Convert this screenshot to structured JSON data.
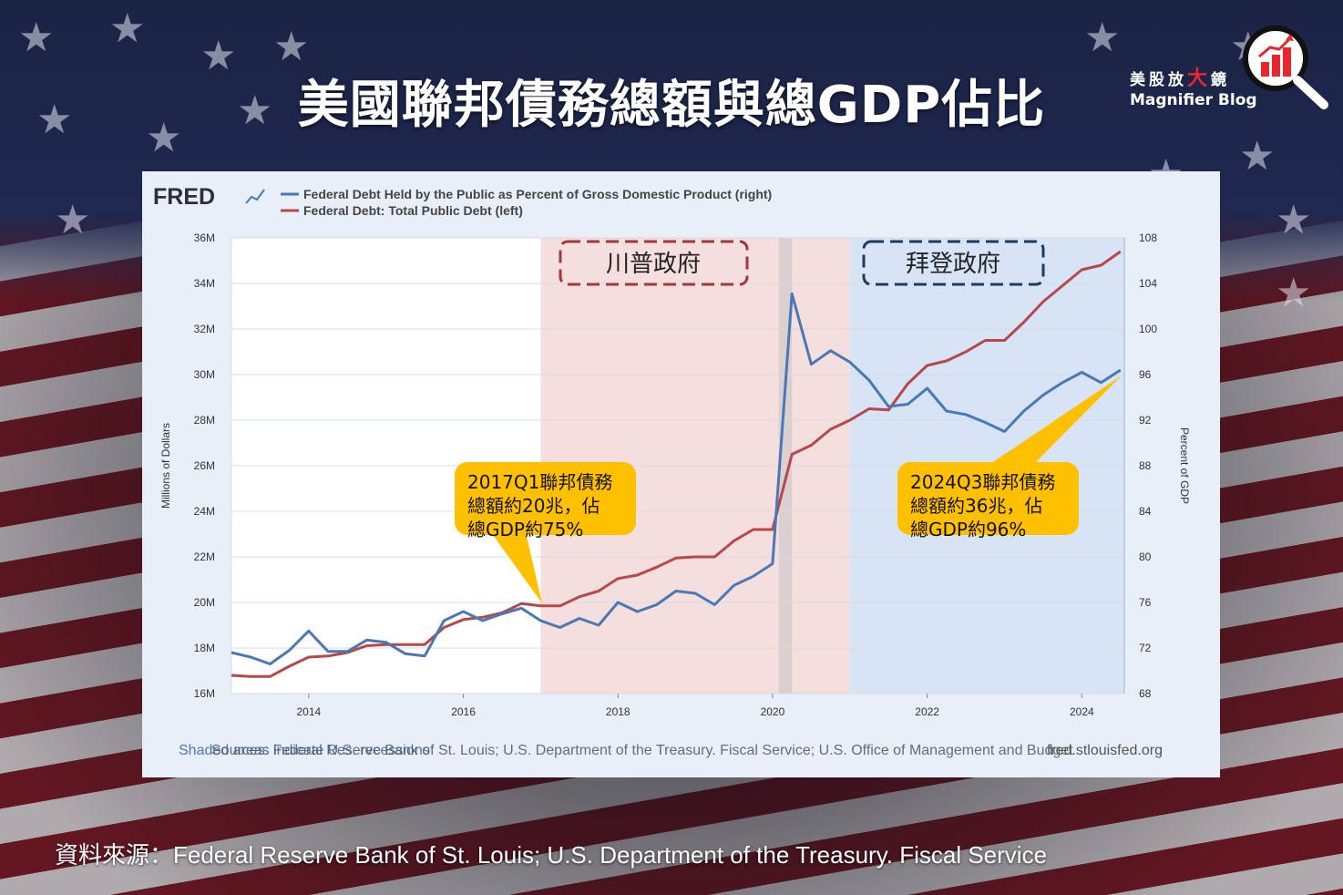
{
  "title": "美國聯邦債務總額與總GDP佔比",
  "logo": {
    "cn_left": "美股放",
    "cn_big": "大",
    "cn_right": "鏡",
    "en": "Magnifier Blog"
  },
  "source_line": "資料來源：Federal Reserve Bank of St. Louis; U.S. Department of the Treasury. Fiscal Service",
  "colors": {
    "debt_line": "#b8474a",
    "gdp_line": "#4a78b4",
    "trump_shade": "#f5dede",
    "biden_shade": "#d6e4f5",
    "recession_shade": "#dccfd0",
    "callout": "#ffc000"
  },
  "chart_data": {
    "type": "line",
    "brand": "FRED",
    "legend": [
      "Federal Debt Held by the Public as Percent of Gross Domestic Product (right)",
      "Federal Debt: Total Public Debt (left)"
    ],
    "ylabel_left": "Millions of Dollars",
    "ylabel_right": "Percent of GDP",
    "ylim_left": [
      16,
      36
    ],
    "ylim_right": [
      68,
      108
    ],
    "yticks_left": [
      "16M",
      "18M",
      "20M",
      "22M",
      "24M",
      "26M",
      "28M",
      "30M",
      "32M",
      "34M",
      "36M"
    ],
    "yticks_right": [
      "68",
      "72",
      "76",
      "80",
      "84",
      "88",
      "92",
      "96",
      "100",
      "104",
      "108"
    ],
    "xlim": [
      2013.0,
      2024.55
    ],
    "xticks": [
      "2014",
      "2016",
      "2018",
      "2020",
      "2022",
      "2024"
    ],
    "shaded_regions": [
      {
        "name": "trump",
        "start": 2017.0,
        "end": 2021.0,
        "label": "川普政府"
      },
      {
        "name": "recession",
        "start": 2020.08,
        "end": 2020.25,
        "label": ""
      },
      {
        "name": "biden",
        "start": 2021.0,
        "end": 2024.55,
        "label": "拜登政府"
      }
    ],
    "footer_sources": "Sources: Federal Reserve Bank of St. Louis; U.S. Department of the Treasury. Fiscal Service; U.S. Office of Management and Budget",
    "footer_shaded": "Shaded areas indicate U.S. recessions",
    "footer_url": "fred.stlouisfed.org",
    "callouts": [
      {
        "line1": "2017Q1聯邦債務",
        "line2": "總額約20兆，佔",
        "line3": "總GDP約75%"
      },
      {
        "line1": "2024Q3聯邦債務",
        "line2": "總額約36兆，佔",
        "line3": "總GDP約96%"
      }
    ],
    "series": [
      {
        "name": "Federal Debt: Total Public Debt (left)",
        "axis": "left",
        "x": [
          2013.0,
          2013.25,
          2013.5,
          2013.75,
          2014.0,
          2014.25,
          2014.5,
          2014.75,
          2015.0,
          2015.25,
          2015.5,
          2015.75,
          2016.0,
          2016.25,
          2016.5,
          2016.75,
          2017.0,
          2017.25,
          2017.5,
          2017.75,
          2018.0,
          2018.25,
          2018.5,
          2018.75,
          2019.0,
          2019.25,
          2019.5,
          2019.75,
          2020.0,
          2020.25,
          2020.5,
          2020.75,
          2021.0,
          2021.25,
          2021.5,
          2021.75,
          2022.0,
          2022.25,
          2022.5,
          2022.75,
          2023.0,
          2023.25,
          2023.5,
          2023.75,
          2024.0,
          2024.25,
          2024.5
        ],
        "values": [
          16.8,
          16.75,
          16.75,
          17.2,
          17.6,
          17.65,
          17.8,
          18.1,
          18.15,
          18.15,
          18.15,
          18.9,
          19.25,
          19.35,
          19.55,
          19.95,
          19.85,
          19.85,
          20.25,
          20.5,
          21.05,
          21.2,
          21.55,
          21.95,
          22.0,
          22.0,
          22.7,
          23.2,
          23.2,
          26.5,
          26.9,
          27.6,
          28.0,
          28.5,
          28.45,
          29.6,
          30.4,
          30.6,
          31.0,
          31.5,
          31.5,
          32.3,
          33.2,
          33.9,
          34.6,
          34.8,
          35.4
        ]
      },
      {
        "name": "Federal Debt Held by the Public as Percent of Gross Domestic Product (right)",
        "axis": "right",
        "x": [
          2013.0,
          2013.25,
          2013.5,
          2013.75,
          2014.0,
          2014.25,
          2014.5,
          2014.75,
          2015.0,
          2015.25,
          2015.5,
          2015.75,
          2016.0,
          2016.25,
          2016.5,
          2016.75,
          2017.0,
          2017.25,
          2017.5,
          2017.75,
          2018.0,
          2018.25,
          2018.5,
          2018.75,
          2019.0,
          2019.25,
          2019.5,
          2019.75,
          2020.0,
          2020.25,
          2020.5,
          2020.75,
          2021.0,
          2021.25,
          2021.5,
          2021.75,
          2022.0,
          2022.25,
          2022.5,
          2022.75,
          2023.0,
          2023.25,
          2023.5,
          2023.75,
          2024.0,
          2024.25,
          2024.5
        ],
        "values": [
          71.6,
          71.2,
          70.6,
          71.8,
          73.5,
          71.7,
          71.7,
          72.7,
          72.5,
          71.5,
          71.3,
          74.4,
          75.2,
          74.4,
          75.0,
          75.5,
          74.4,
          73.8,
          74.6,
          74.0,
          76.0,
          75.2,
          75.8,
          77.0,
          76.8,
          75.8,
          77.5,
          78.3,
          79.4,
          103.1,
          96.9,
          98.1,
          97.1,
          95.5,
          93.2,
          93.4,
          94.8,
          92.8,
          92.5,
          91.8,
          91.0,
          92.8,
          94.2,
          95.3,
          96.2,
          95.3,
          96.4
        ]
      }
    ]
  }
}
